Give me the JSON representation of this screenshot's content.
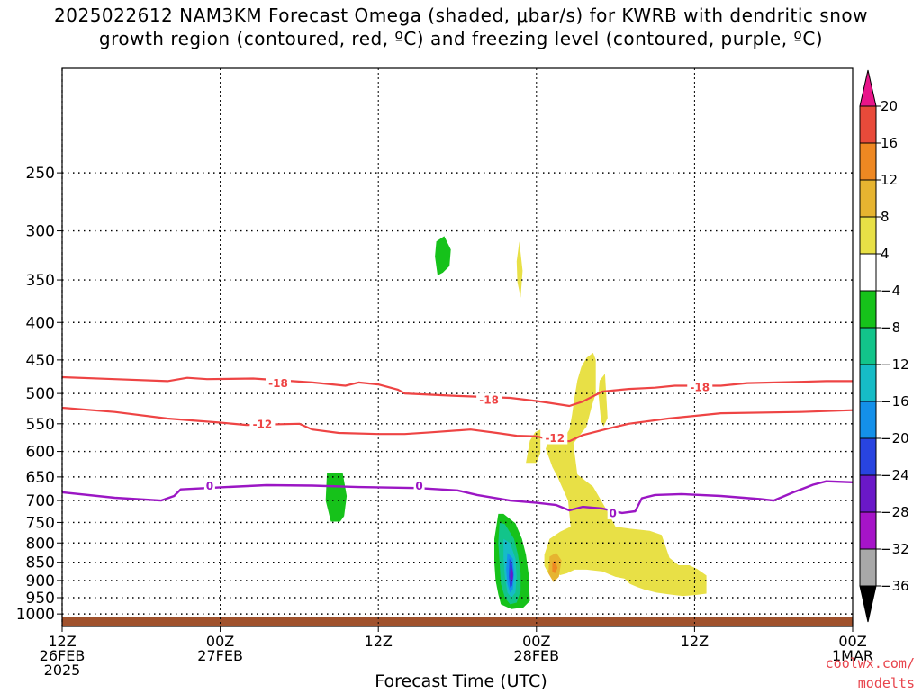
{
  "title": {
    "line1": "2025022612 NAM3KM Forecast Omega (shaded, μbar/s) for KWRB with dendritic snow",
    "line2": "growth region (contoured, red, ºC) and freezing level (contoured, purple, ºC)"
  },
  "credit": {
    "line1": "coolwx.com/",
    "line2": "modelts"
  },
  "chart_data": {
    "type": "time-height cross section",
    "x_axis": {
      "label": "Forecast Time (UTC)",
      "unit": "hours since 2025-02-26 12Z",
      "range": [
        0,
        60
      ],
      "ticks": [
        {
          "hour": 0,
          "lines": [
            "12Z",
            "26FEB",
            "2025"
          ]
        },
        {
          "hour": 12,
          "lines": [
            "00Z",
            "27FEB"
          ]
        },
        {
          "hour": 24,
          "lines": [
            "12Z"
          ]
        },
        {
          "hour": 36,
          "lines": [
            "00Z",
            "28FEB"
          ]
        },
        {
          "hour": 48,
          "lines": [
            "12Z"
          ]
        },
        {
          "hour": 60,
          "lines": [
            "00Z",
            "1MAR"
          ]
        }
      ]
    },
    "y_axis": {
      "unit": "hPa",
      "scale": "log",
      "range": [
        1040,
        180
      ],
      "ticks": [
        250,
        300,
        350,
        400,
        450,
        500,
        550,
        600,
        650,
        700,
        750,
        800,
        850,
        900,
        950,
        1000
      ],
      "gridlines": "dotted"
    },
    "colorbar": {
      "unit": "μbar/s",
      "labels": [
        20,
        16,
        12,
        8,
        4,
        -4,
        -8,
        -12,
        -16,
        -20,
        -24,
        -28,
        -32,
        -36
      ],
      "bins": [
        {
          "range": ">20",
          "color": "#e8158a"
        },
        {
          "range": "16 to 20",
          "color": "#e84a3a"
        },
        {
          "range": "12 to 16",
          "color": "#ee8822"
        },
        {
          "range": "8 to 12",
          "color": "#e6b430"
        },
        {
          "range": "4 to 8",
          "color": "#e8e046"
        },
        {
          "range": "-4 to 4",
          "color": "#ffffff"
        },
        {
          "range": "-8 to -4",
          "color": "#16c21a"
        },
        {
          "range": "-12 to -8",
          "color": "#12c48a"
        },
        {
          "range": "-16 to -12",
          "color": "#16bcc6"
        },
        {
          "range": "-20 to -16",
          "color": "#1490ea"
        },
        {
          "range": "-24 to -20",
          "color": "#2844e0"
        },
        {
          "range": "-28 to -24",
          "color": "#6a18c8"
        },
        {
          "range": "-32 to -28",
          "color": "#a614c8"
        },
        {
          "range": "-36 to -32",
          "color": "#a8a8a8"
        },
        {
          "range": "<-36",
          "color": "#000000"
        }
      ]
    },
    "terrain": {
      "color": "#a0522d",
      "surface_hPa": 1010
    },
    "contours": [
      {
        "name": "-18",
        "color": "#ee4444",
        "labels": [
          {
            "text": "-18",
            "hour": 16.4,
            "p": 484
          },
          {
            "text": "-18",
            "hour": 32.4,
            "p": 510
          },
          {
            "text": "-18",
            "hour": 48.4,
            "p": 490
          }
        ],
        "points": [
          [
            0,
            475
          ],
          [
            4,
            478
          ],
          [
            8,
            481
          ],
          [
            9.5,
            476
          ],
          [
            11,
            478
          ],
          [
            14.5,
            477
          ],
          [
            19,
            483
          ],
          [
            21.5,
            488
          ],
          [
            22.5,
            483
          ],
          [
            24,
            486
          ],
          [
            25.5,
            494
          ],
          [
            26,
            500
          ],
          [
            30,
            504
          ],
          [
            34,
            507
          ],
          [
            36,
            512
          ],
          [
            37,
            515
          ],
          [
            38.5,
            520
          ],
          [
            39.5,
            513
          ],
          [
            41,
            497
          ],
          [
            43,
            493
          ],
          [
            45,
            491
          ],
          [
            46.5,
            488
          ],
          [
            50,
            488
          ],
          [
            52,
            484
          ],
          [
            56,
            482
          ],
          [
            58,
            481
          ],
          [
            60,
            481
          ]
        ]
      },
      {
        "name": "-12",
        "color": "#ee4444",
        "labels": [
          {
            "text": "-12",
            "hour": 15.2,
            "p": 550
          },
          {
            "text": "-12",
            "hour": 37.4,
            "p": 575
          }
        ],
        "points": [
          [
            0,
            523
          ],
          [
            4,
            530
          ],
          [
            8,
            541
          ],
          [
            12,
            548
          ],
          [
            14,
            552
          ],
          [
            18,
            550
          ],
          [
            19,
            560
          ],
          [
            21,
            566
          ],
          [
            24,
            568
          ],
          [
            26,
            568
          ],
          [
            28,
            565
          ],
          [
            31,
            560
          ],
          [
            33,
            566
          ],
          [
            34.5,
            571
          ],
          [
            36,
            572
          ],
          [
            37,
            578
          ],
          [
            38.5,
            581
          ],
          [
            39.5,
            570
          ],
          [
            41.5,
            558
          ],
          [
            43,
            550
          ],
          [
            46,
            541
          ],
          [
            50,
            532
          ],
          [
            56,
            530
          ],
          [
            60,
            527
          ]
        ]
      },
      {
        "name": "0",
        "color": "#9b16c4",
        "labels": [
          {
            "text": "0",
            "hour": 11.2,
            "p": 668
          },
          {
            "text": "0",
            "hour": 27.1,
            "p": 668
          },
          {
            "text": "0",
            "hour": 41.8,
            "p": 728
          }
        ],
        "points": [
          [
            0,
            682
          ],
          [
            4,
            694
          ],
          [
            7.5,
            700
          ],
          [
            8.5,
            690
          ],
          [
            9,
            676
          ],
          [
            12.5,
            671
          ],
          [
            15.5,
            667
          ],
          [
            19,
            668
          ],
          [
            22.5,
            671
          ],
          [
            27,
            673
          ],
          [
            30,
            678
          ],
          [
            31.5,
            688
          ],
          [
            34,
            700
          ],
          [
            36,
            705
          ],
          [
            37.5,
            710
          ],
          [
            38.5,
            722
          ],
          [
            39.5,
            714
          ],
          [
            41,
            718
          ],
          [
            42.5,
            728
          ],
          [
            43.5,
            724
          ],
          [
            44,
            695
          ],
          [
            45,
            688
          ],
          [
            47,
            686
          ],
          [
            50,
            690
          ],
          [
            53,
            697
          ],
          [
            54,
            700
          ],
          [
            55.5,
            682
          ],
          [
            57,
            666
          ],
          [
            58,
            659
          ],
          [
            60,
            661
          ]
        ]
      }
    ],
    "omega_regions": [
      {
        "level": "-8 to -4",
        "color": "#16c21a",
        "points": [
          [
            28.4,
            310
          ],
          [
            29,
            305
          ],
          [
            29.5,
            318
          ],
          [
            29.4,
            335
          ],
          [
            28.9,
            342
          ],
          [
            28.5,
            345
          ],
          [
            28.3,
            325
          ]
        ]
      },
      {
        "level": "4 to 8",
        "color": "#e8e046",
        "points": [
          [
            34.7,
            310
          ],
          [
            34.95,
            340
          ],
          [
            34.8,
            370
          ],
          [
            34.55,
            352
          ],
          [
            34.5,
            330
          ]
        ]
      },
      {
        "level": "-8 to -4",
        "color": "#16c21a",
        "points": [
          [
            20.1,
            643
          ],
          [
            21.3,
            643
          ],
          [
            21.6,
            690
          ],
          [
            21.4,
            735
          ],
          [
            21.1,
            748
          ],
          [
            20.4,
            748
          ],
          [
            20.0,
            700
          ]
        ]
      },
      {
        "level": "4 to 8",
        "color": "#e8e046",
        "points": [
          [
            35.9,
            565
          ],
          [
            36.3,
            560
          ],
          [
            36.3,
            603
          ],
          [
            36.0,
            622
          ],
          [
            35.2,
            622
          ],
          [
            35.5,
            580
          ]
        ]
      },
      {
        "level": "4 to 8",
        "color": "#e8e046",
        "points": [
          [
            40.8,
            480
          ],
          [
            41.2,
            470
          ],
          [
            41.4,
            540
          ],
          [
            41.1,
            555
          ],
          [
            40.9,
            545
          ],
          [
            40.7,
            500
          ]
        ]
      },
      {
        "level": "4 to 8",
        "color": "#e8e046",
        "points": [
          [
            40.3,
            440
          ],
          [
            40.5,
            450
          ],
          [
            40.5,
            500
          ],
          [
            40.2,
            520
          ],
          [
            39.8,
            555
          ],
          [
            38.8,
            585
          ],
          [
            39.1,
            645
          ],
          [
            40.3,
            670
          ],
          [
            41.3,
            720
          ],
          [
            42.0,
            760
          ],
          [
            43.1,
            765
          ],
          [
            44.6,
            770
          ],
          [
            45.5,
            780
          ],
          [
            46.1,
            838
          ],
          [
            46.8,
            858
          ],
          [
            47.6,
            858
          ],
          [
            48.2,
            868
          ],
          [
            48.9,
            886
          ],
          [
            48.9,
            938
          ],
          [
            48.1,
            942
          ],
          [
            47.1,
            945
          ],
          [
            46.2,
            941
          ],
          [
            45.1,
            935
          ],
          [
            44.2,
            926
          ],
          [
            43.6,
            918
          ],
          [
            43.1,
            910
          ],
          [
            42.7,
            895
          ],
          [
            42.0,
            890
          ],
          [
            41.0,
            875
          ],
          [
            39.8,
            870
          ],
          [
            38.9,
            870
          ],
          [
            38.3,
            880
          ],
          [
            37.8,
            885
          ],
          [
            37.3,
            875
          ],
          [
            36.9,
            880
          ],
          [
            36.6,
            860
          ],
          [
            36.6,
            830
          ],
          [
            37.0,
            790
          ],
          [
            37.8,
            772
          ],
          [
            38.6,
            760
          ],
          [
            38.4,
            700
          ],
          [
            37.6,
            650
          ],
          [
            37.2,
            630
          ],
          [
            37.0,
            615
          ],
          [
            36.7,
            595
          ],
          [
            37.0,
            575
          ],
          [
            38.1,
            575
          ],
          [
            38.5,
            560
          ],
          [
            38.7,
            535
          ],
          [
            38.9,
            505
          ],
          [
            39.1,
            480
          ],
          [
            39.4,
            460
          ],
          [
            39.8,
            447
          ]
        ]
      },
      {
        "level": "-8 to -4",
        "color": "#16c21a",
        "points": [
          [
            33.1,
            730
          ],
          [
            33.5,
            730
          ],
          [
            34.4,
            752
          ],
          [
            34.9,
            790
          ],
          [
            35.2,
            830
          ],
          [
            35.4,
            880
          ],
          [
            35.5,
            960
          ],
          [
            35.0,
            980
          ],
          [
            34.1,
            985
          ],
          [
            33.3,
            970
          ],
          [
            33.1,
            940
          ],
          [
            32.9,
            900
          ],
          [
            32.8,
            850
          ],
          [
            32.8,
            790
          ]
        ]
      },
      {
        "level": "-12 to -8",
        "color": "#12c48a",
        "points": [
          [
            33.2,
            750
          ],
          [
            33.6,
            754
          ],
          [
            34.3,
            790
          ],
          [
            34.6,
            830
          ],
          [
            34.8,
            880
          ],
          [
            34.8,
            930
          ],
          [
            34.5,
            965
          ],
          [
            34.0,
            970
          ],
          [
            33.6,
            950
          ],
          [
            33.3,
            910
          ],
          [
            33.2,
            850
          ],
          [
            33.1,
            800
          ]
        ]
      },
      {
        "level": "-16 to -12",
        "color": "#16bcc6",
        "points": [
          [
            33.5,
            790
          ],
          [
            34.0,
            800
          ],
          [
            34.4,
            840
          ],
          [
            34.5,
            890
          ],
          [
            34.4,
            935
          ],
          [
            34.1,
            950
          ],
          [
            33.8,
            935
          ],
          [
            33.6,
            890
          ],
          [
            33.5,
            840
          ]
        ]
      },
      {
        "level": "-20 to -16",
        "color": "#1490ea",
        "points": [
          [
            33.8,
            825
          ],
          [
            34.2,
            840
          ],
          [
            34.3,
            880
          ],
          [
            34.2,
            925
          ],
          [
            34.0,
            935
          ],
          [
            33.8,
            910
          ],
          [
            33.7,
            870
          ]
        ]
      },
      {
        "level": "-24 to -20",
        "color": "#2844e0",
        "points": [
          [
            33.95,
            840
          ],
          [
            34.15,
            855
          ],
          [
            34.25,
            885
          ],
          [
            34.15,
            915
          ],
          [
            34.0,
            920
          ],
          [
            33.9,
            890
          ]
        ]
      },
      {
        "level": "-28 to -24",
        "color": "#6a18c8",
        "points": [
          [
            34.05,
            860
          ],
          [
            34.2,
            875
          ],
          [
            34.2,
            895
          ],
          [
            34.1,
            905
          ],
          [
            34.0,
            890
          ]
        ]
      },
      {
        "level": "8 to 12",
        "color": "#e6b430",
        "points": [
          [
            37.0,
            835
          ],
          [
            37.5,
            825
          ],
          [
            37.9,
            845
          ],
          [
            37.7,
            890
          ],
          [
            37.3,
            905
          ],
          [
            36.9,
            880
          ]
        ]
      },
      {
        "level": "12 to 16",
        "color": "#ee8822",
        "points": [
          [
            37.2,
            850
          ],
          [
            37.4,
            845
          ],
          [
            37.6,
            865
          ],
          [
            37.4,
            880
          ],
          [
            37.2,
            875
          ]
        ]
      }
    ]
  }
}
